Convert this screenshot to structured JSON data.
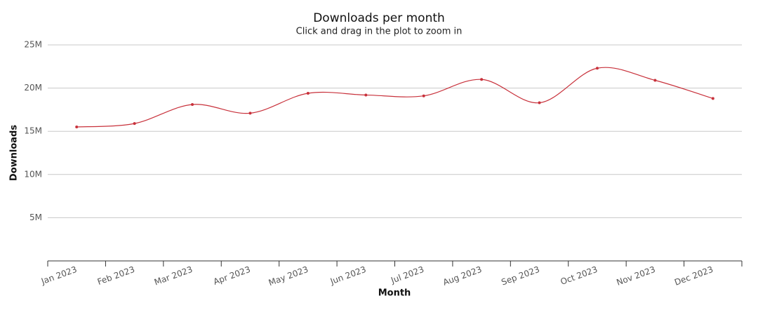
{
  "chart_data": {
    "type": "line",
    "title": "Downloads per month",
    "subtitle": "Click and drag in the plot to zoom in",
    "x_label": "Month",
    "y_label": "Downloads",
    "categories": [
      "Jan 2023",
      "Feb 2023",
      "Mar 2023",
      "Apr 2023",
      "May 2023",
      "Jun 2023",
      "Jul 2023",
      "Aug 2023",
      "Sep 2023",
      "Oct 2023",
      "Nov 2023",
      "Dec 2023"
    ],
    "values": [
      15500000,
      15900000,
      18100000,
      17100000,
      19400000,
      19200000,
      19100000,
      21000000,
      18300000,
      22300000,
      20900000,
      18800000
    ],
    "color": "#c8313b",
    "ylim": [
      0,
      25000000
    ],
    "yticks": [
      {
        "value": 5000000,
        "label": "5M"
      },
      {
        "value": 10000000,
        "label": "10M"
      },
      {
        "value": 15000000,
        "label": "15M"
      },
      {
        "value": 20000000,
        "label": "20M"
      },
      {
        "value": 25000000,
        "label": "25M"
      }
    ],
    "grid": true
  }
}
